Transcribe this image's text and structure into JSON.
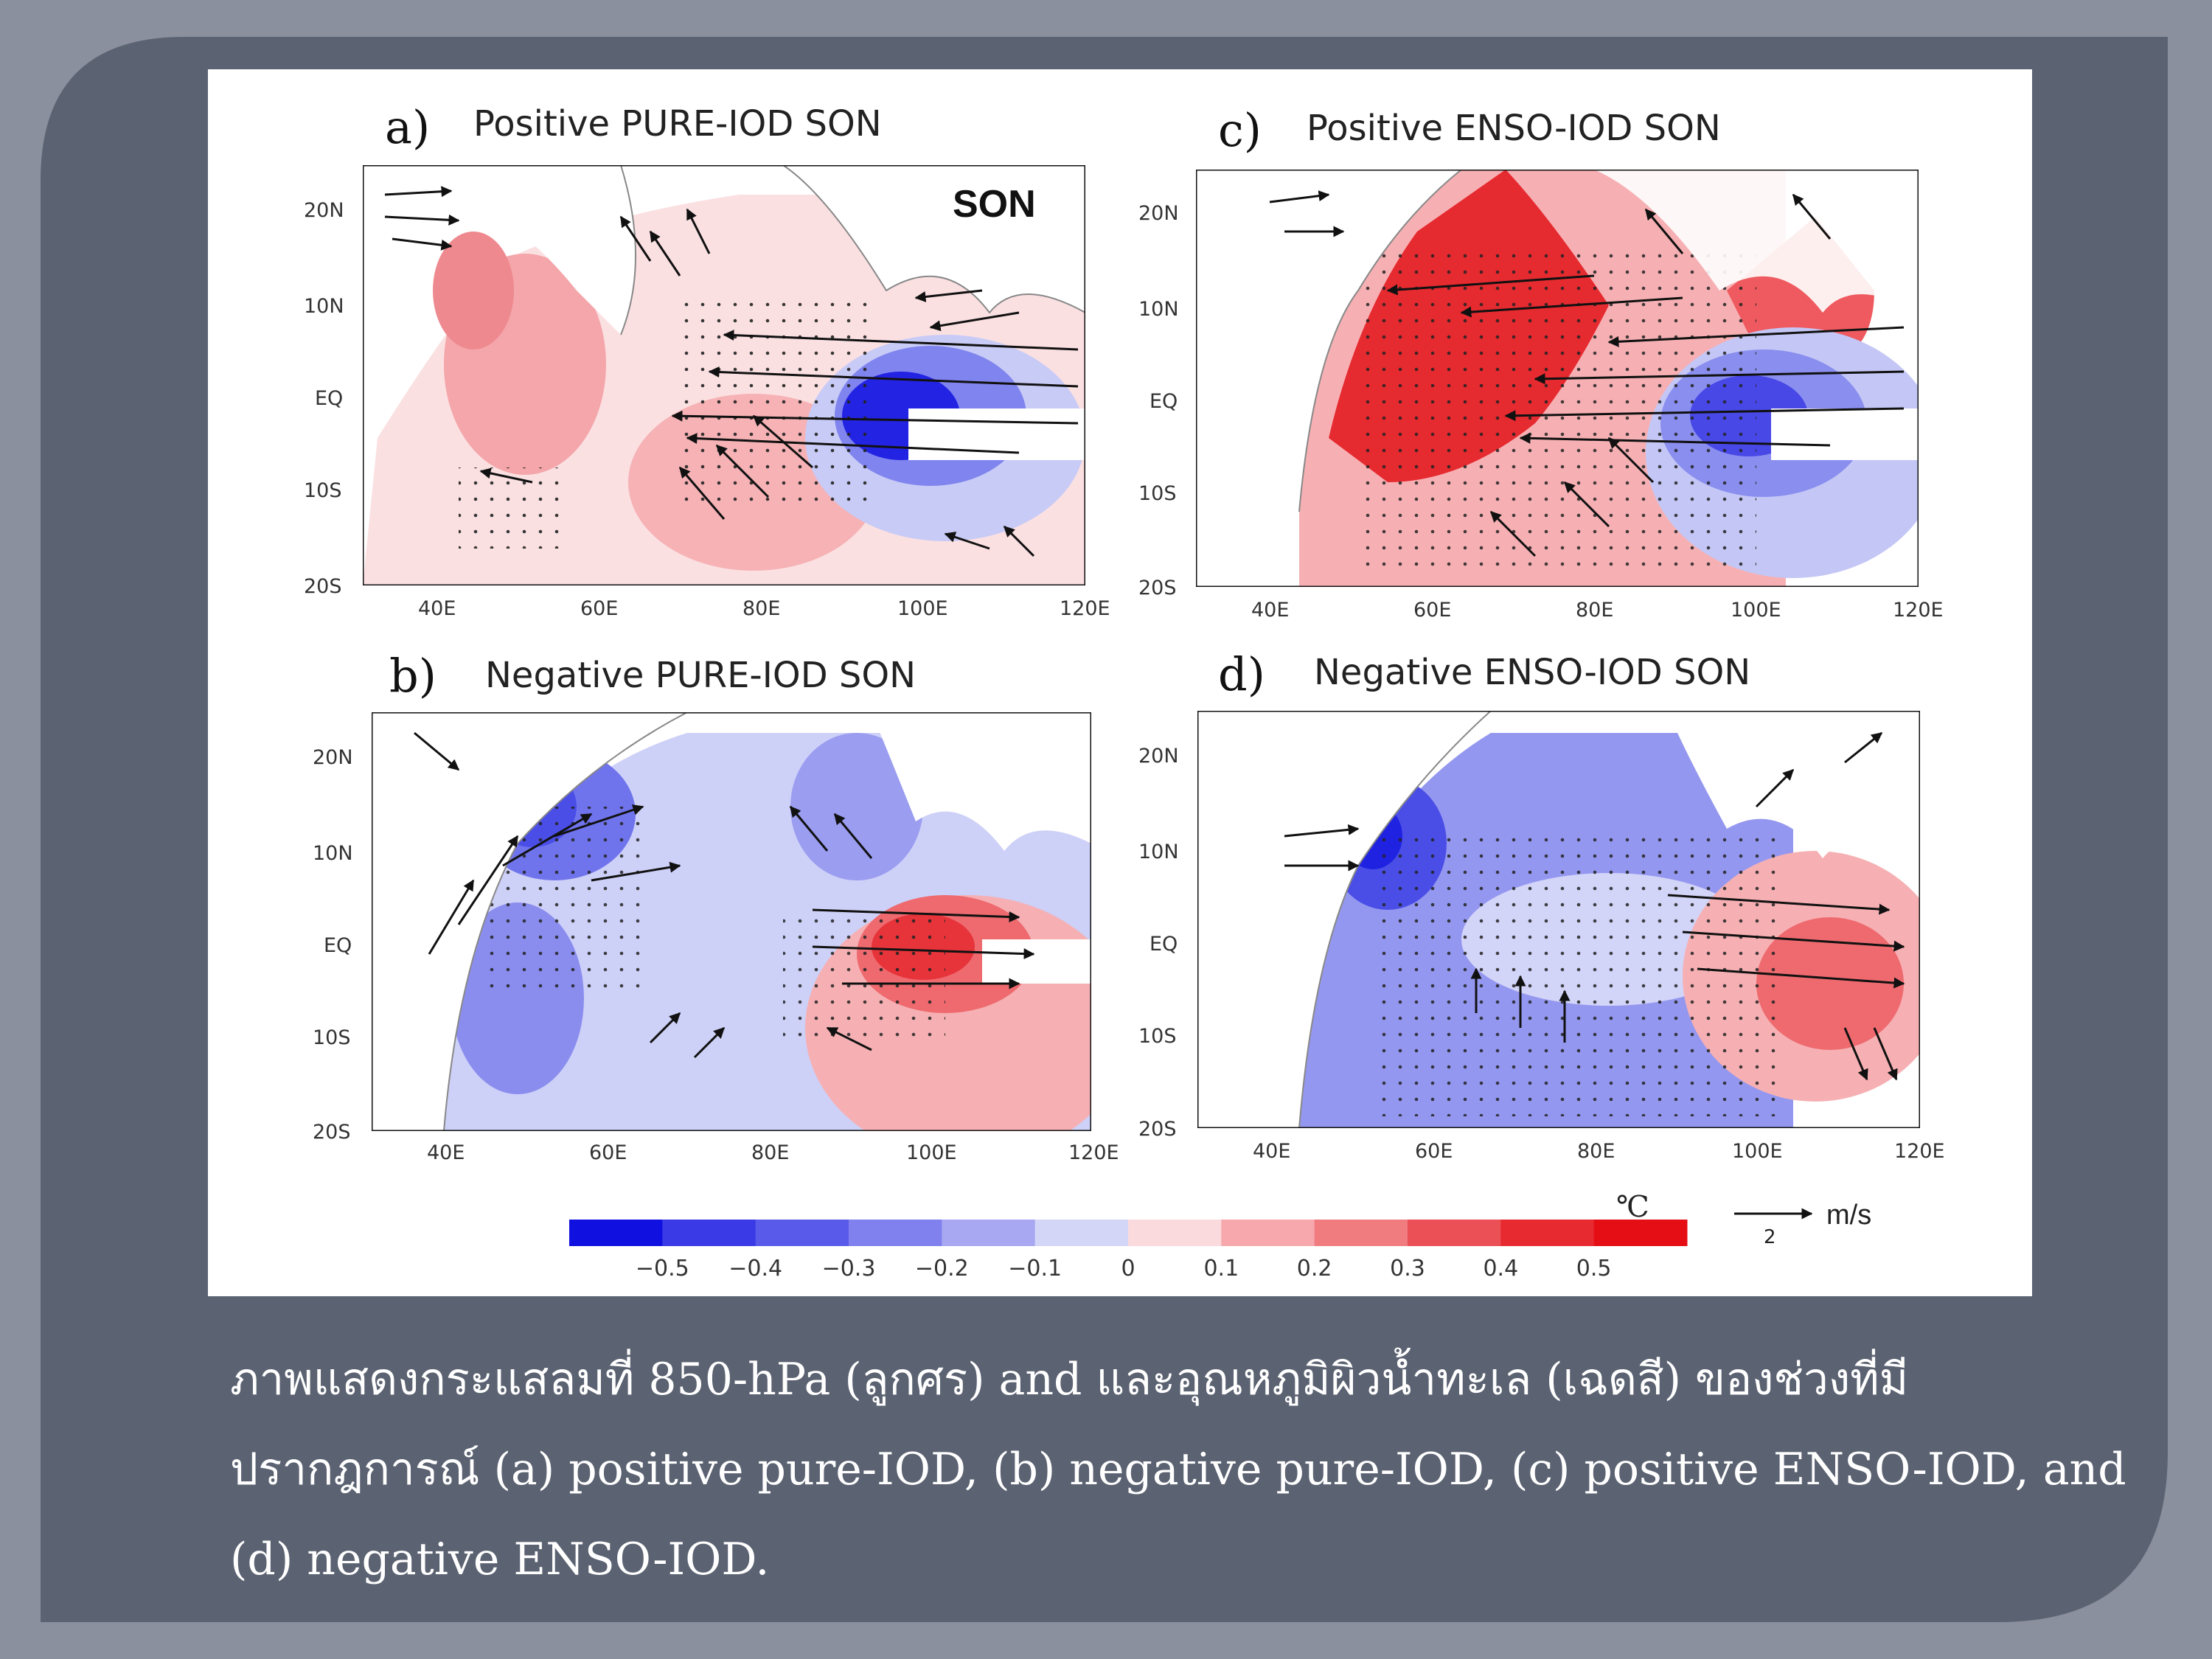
{
  "panels": [
    {
      "id": "a",
      "letter": "a)",
      "title": "Positive PURE-IOD SON",
      "inset_label": "SON"
    },
    {
      "id": "c",
      "letter": "c)",
      "title": "Positive ENSO-IOD SON",
      "inset_label": ""
    },
    {
      "id": "b",
      "letter": "b)",
      "title": "Negative PURE-IOD SON",
      "inset_label": ""
    },
    {
      "id": "d",
      "letter": "d)",
      "title": "Negative ENSO-IOD SON",
      "inset_label": ""
    }
  ],
  "lat_ticks": [
    "20N",
    "10N",
    "EQ",
    "10S",
    "20S"
  ],
  "lon_ticks": [
    "40E",
    "60E",
    "80E",
    "100E",
    "120E"
  ],
  "colorbar": {
    "unit": "℃",
    "labels": [
      "−0.5",
      "−0.4",
      "−0.3",
      "−0.2",
      "−0.1",
      "0",
      "0.1",
      "0.2",
      "0.3",
      "0.4",
      "0.5"
    ],
    "colors": [
      "#1010e0",
      "#3a3ae6",
      "#5a5aea",
      "#8080ee",
      "#a8a8f2",
      "#d4d6f8",
      "#fadadd",
      "#f6a8ac",
      "#f07c80",
      "#ea5055",
      "#e62a30",
      "#e40e14"
    ]
  },
  "reference_vector": {
    "value": "2",
    "unit": "m/s"
  },
  "caption_lines": [
    "ภาพแสดงกระแสลมที่ 850-hPa (ลูกศร) and และอุณหภูมิผิวน้ำทะเล (เฉดสี) ของช่วงที่มี",
    "ปรากฎการณ์  (a) positive pure-IOD, (b) negative pure-IOD, (c) positive ENSO-IOD, and",
    "(d) negative ENSO-IOD."
  ]
}
